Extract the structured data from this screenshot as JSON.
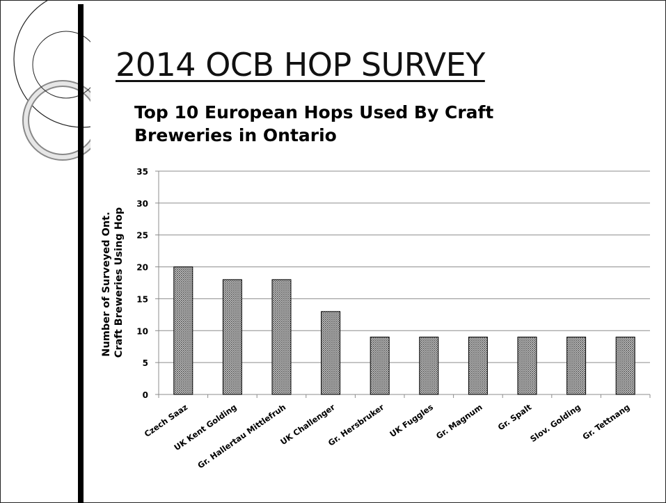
{
  "slide": {
    "title": "2014 OCB HOP SURVEY"
  },
  "chart_data": {
    "type": "bar",
    "title": "Top 10 European Hops Used By Craft Breweries in Ontario",
    "xlabel": "",
    "ylabel": "Number of Surveyed Ont. Craft Breweries  Using Hop",
    "ylabel_lines": [
      "Number of Surveyed Ont.",
      "Craft Breweries  Using Hop"
    ],
    "categories": [
      "Czech Saaz",
      "UK Kent Golding",
      "Gr. Hallertau Mittlefruh",
      "UK Challenger",
      "Gr. Hersbruker",
      "UK Fuggles",
      "Gr. Magnum",
      "Gr. Spalt",
      "Slov. Golding",
      "Gr. Tettnang"
    ],
    "values": [
      20,
      18,
      18,
      13,
      9,
      9,
      9,
      9,
      9,
      9
    ],
    "ylim": [
      0,
      35
    ],
    "yticks": [
      "0",
      "5",
      "10",
      "15",
      "20",
      "25",
      "30",
      "35"
    ],
    "grid": true,
    "bar_fill": "crosshatch",
    "colors": {
      "bar_stroke": "#000000",
      "bar_pattern": "#555555",
      "grid": "#8c8c8c",
      "axis": "#8c8c8c"
    }
  }
}
